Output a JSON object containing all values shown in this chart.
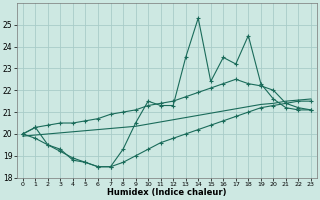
{
  "xlabel": "Humidex (Indice chaleur)",
  "bg_color": "#cde8e2",
  "grid_color": "#a8ccc8",
  "line_color": "#1a6b5a",
  "x": [
    0,
    1,
    2,
    3,
    4,
    5,
    6,
    7,
    8,
    9,
    10,
    11,
    12,
    13,
    14,
    15,
    16,
    17,
    18,
    19,
    20,
    21,
    22,
    23
  ],
  "series_main": [
    20.0,
    20.3,
    19.5,
    19.3,
    18.8,
    18.7,
    18.5,
    18.5,
    19.3,
    20.5,
    21.5,
    21.3,
    21.3,
    23.5,
    25.3,
    22.4,
    23.5,
    23.2,
    24.5,
    22.3,
    21.6,
    21.2,
    21.1,
    21.1
  ],
  "series_upper": [
    20.0,
    20.3,
    20.4,
    20.5,
    20.5,
    20.6,
    20.7,
    20.9,
    21.0,
    21.1,
    21.3,
    21.4,
    21.5,
    21.7,
    21.9,
    22.1,
    22.3,
    22.5,
    22.3,
    22.2,
    22.0,
    21.4,
    21.2,
    21.1
  ],
  "series_lower": [
    20.0,
    19.8,
    19.5,
    19.2,
    18.9,
    18.7,
    18.5,
    18.5,
    18.7,
    19.0,
    19.3,
    19.6,
    19.8,
    20.0,
    20.2,
    20.4,
    20.6,
    20.8,
    21.0,
    21.2,
    21.3,
    21.4,
    21.5,
    21.5
  ],
  "series_trend": [
    19.9,
    19.95,
    20.0,
    20.05,
    20.1,
    20.15,
    20.2,
    20.25,
    20.3,
    20.35,
    20.45,
    20.55,
    20.65,
    20.75,
    20.85,
    20.95,
    21.05,
    21.15,
    21.25,
    21.35,
    21.4,
    21.5,
    21.55,
    21.6
  ],
  "ylim": [
    18,
    26
  ],
  "yticks": [
    18,
    19,
    20,
    21,
    22,
    23,
    24,
    25
  ],
  "xlim": [
    -0.5,
    23.5
  ],
  "xticks": [
    0,
    1,
    2,
    3,
    4,
    5,
    6,
    7,
    8,
    9,
    10,
    11,
    12,
    13,
    14,
    15,
    16,
    17,
    18,
    19,
    20,
    21,
    22,
    23
  ]
}
